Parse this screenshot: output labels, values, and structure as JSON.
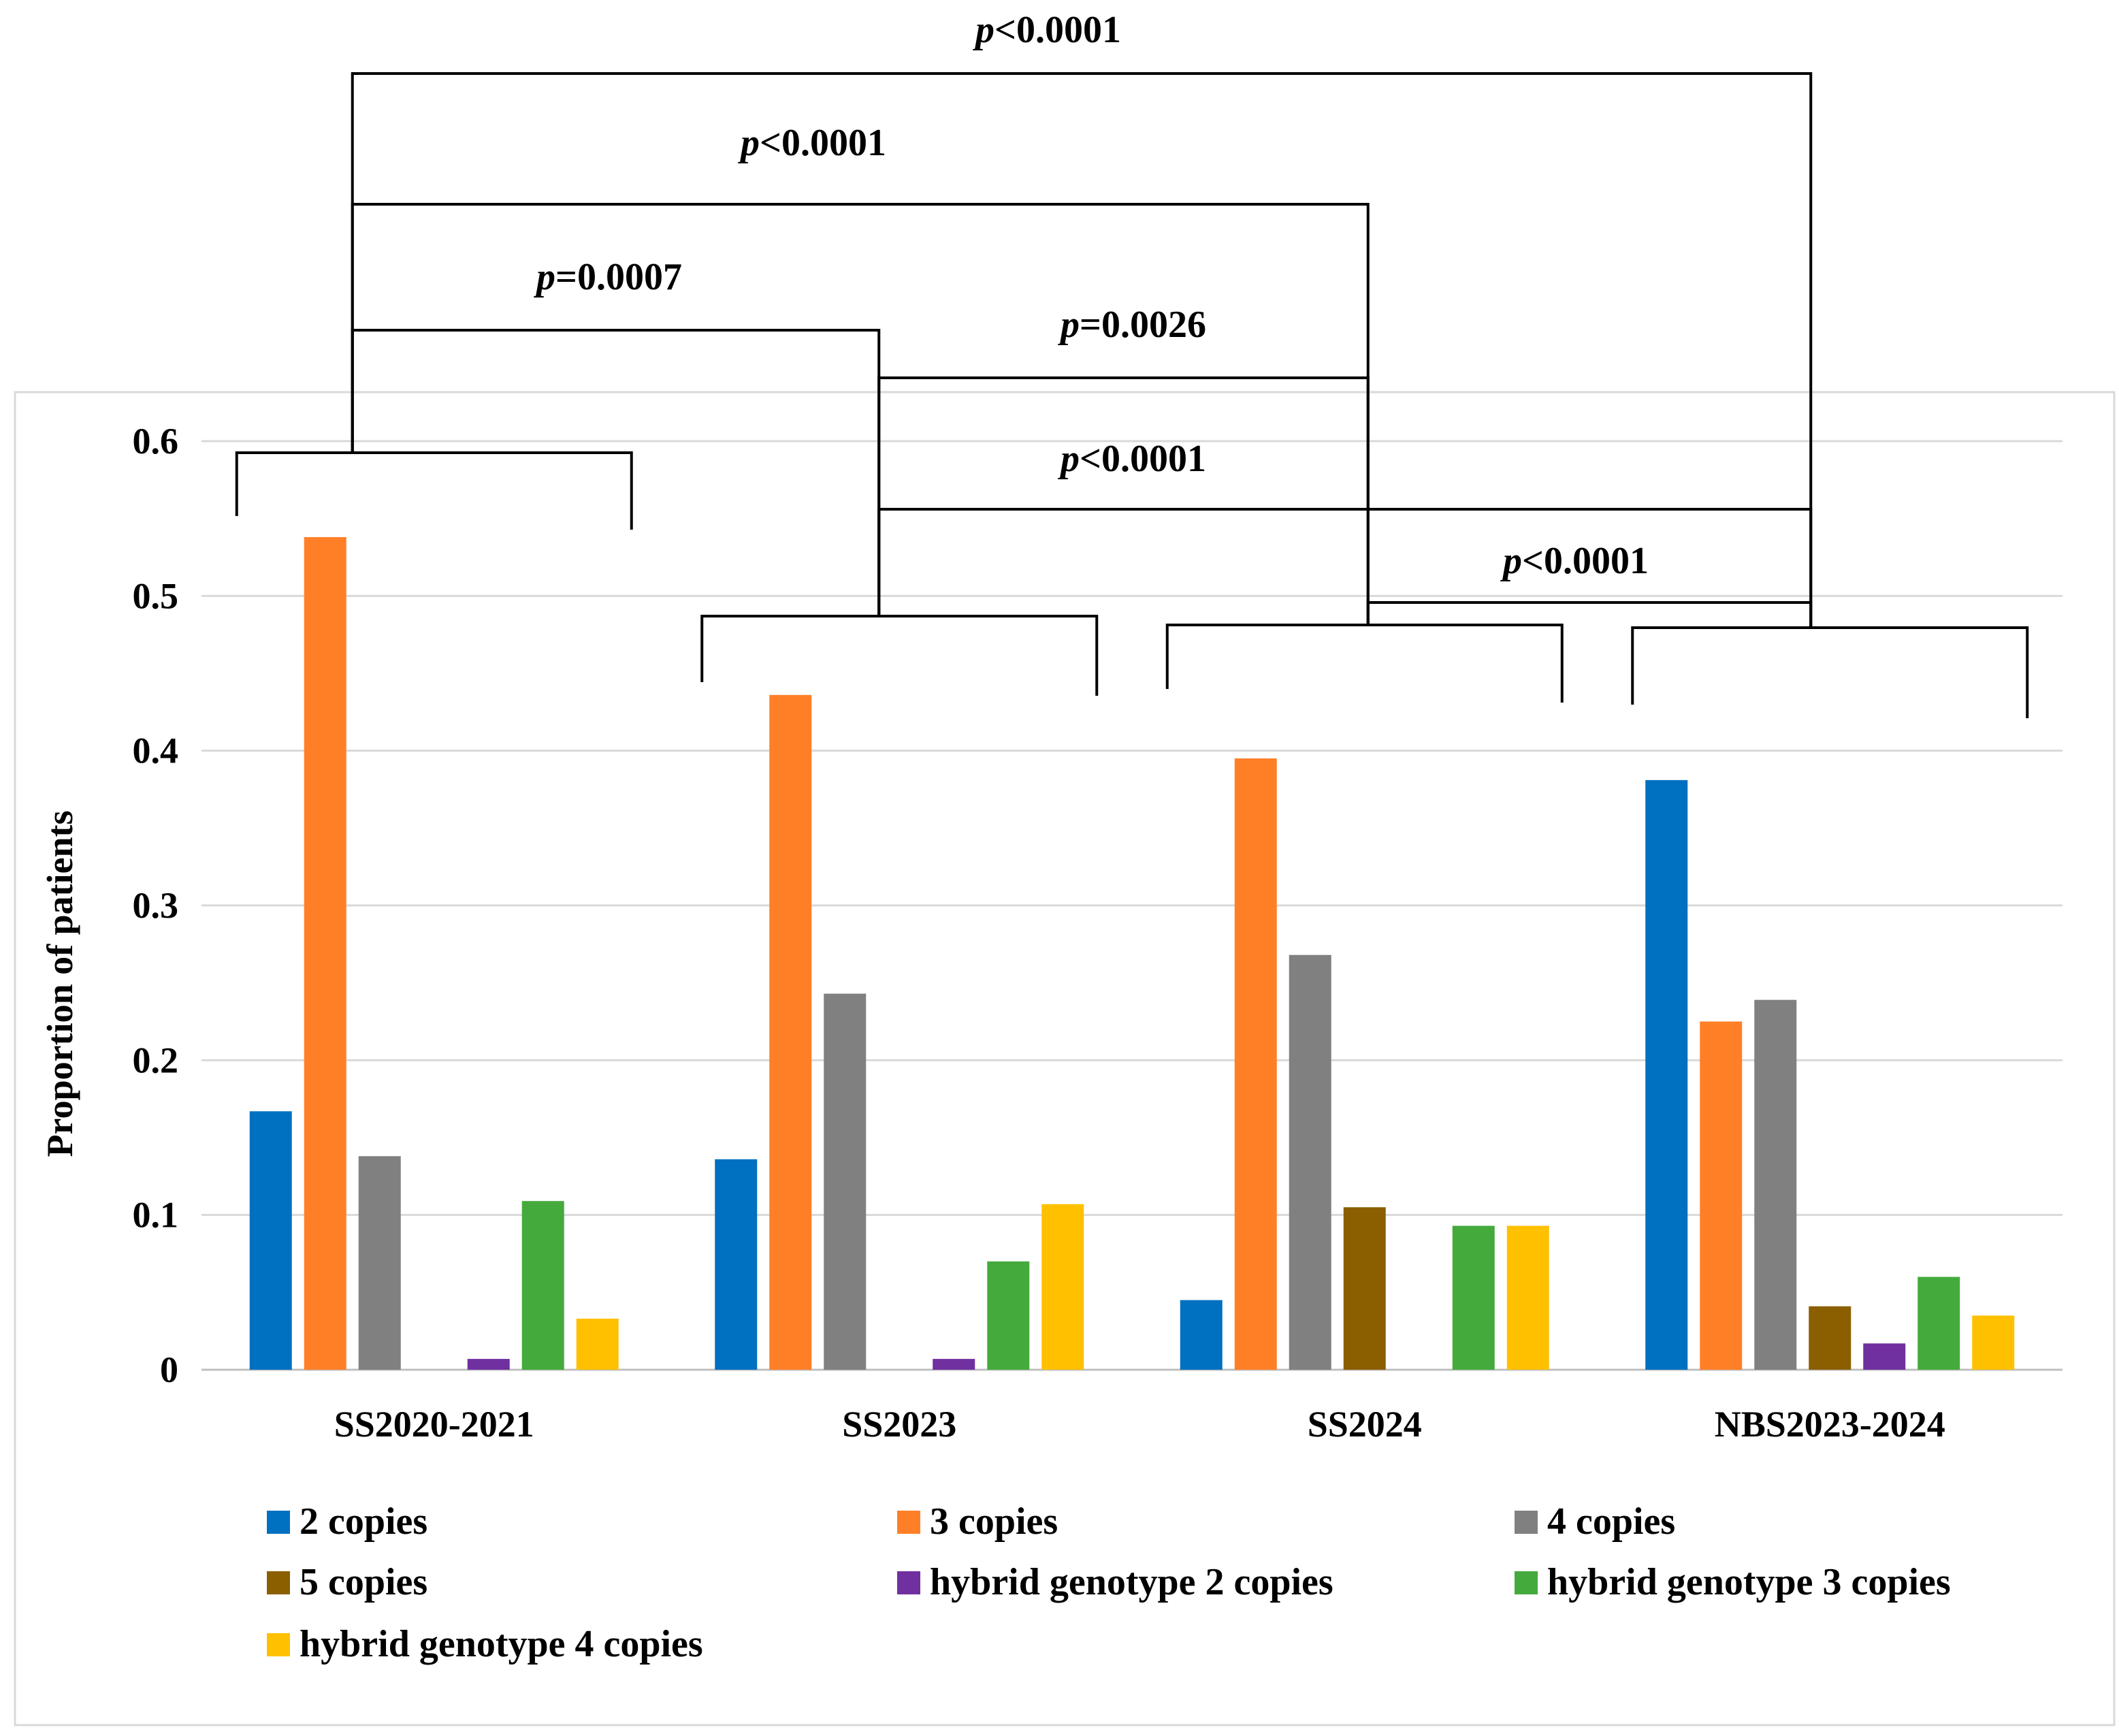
{
  "chart_data": {
    "type": "bar",
    "ylabel": "Proportion of patients",
    "ylim": [
      0,
      0.6
    ],
    "yticks": [
      "0",
      "0.1",
      "0.2",
      "0.3",
      "0.4",
      "0.5",
      "0.6"
    ],
    "categories": [
      "SS2020-2021",
      "SS2023",
      "SS2024",
      "NBS2023-2024"
    ],
    "grid": true,
    "legend_position": "bottom",
    "series": [
      {
        "name": "2 copies",
        "color": "#0070C0",
        "values": [
          0.167,
          0.136,
          0.045,
          0.381
        ]
      },
      {
        "name": "3 copies",
        "color": "#FF7F27",
        "values": [
          0.538,
          0.436,
          0.395,
          0.225
        ]
      },
      {
        "name": "4 copies",
        "color": "#808080",
        "values": [
          0.138,
          0.243,
          0.268,
          0.239
        ]
      },
      {
        "name": "5 copies",
        "color": "#8B5E00",
        "values": [
          0,
          0,
          0.105,
          0.041
        ]
      },
      {
        "name": "hybrid genotype 2 copies",
        "color": "#7030A0",
        "values": [
          0.007,
          0.007,
          0,
          0.017
        ]
      },
      {
        "name": "hybrid genotype 3 copies",
        "color": "#44AA3C",
        "values": [
          0.109,
          0.07,
          0.093,
          0.06
        ]
      },
      {
        "name": "hybrid genotype 4 copies",
        "color": "#FFC000",
        "values": [
          0.033,
          0.107,
          0.093,
          0.035
        ]
      }
    ],
    "comparisons": [
      {
        "from": "SS2020-2021",
        "to": "NBS2023-2024",
        "p_italic": "p",
        "p_rest": "<0.0001"
      },
      {
        "from": "SS2020-2021",
        "to": "SS2024",
        "p_italic": "p",
        "p_rest": "<0.0001"
      },
      {
        "from": "SS2020-2021",
        "to": "SS2023",
        "p_italic": "p",
        "p_rest": "=0.0007"
      },
      {
        "from": "SS2023",
        "to": "SS2024",
        "p_italic": "p",
        "p_rest": "=0.0026"
      },
      {
        "from": "SS2023",
        "to": "NBS2023-2024",
        "p_italic": "p",
        "p_rest": "<0.0001"
      },
      {
        "from": "SS2024",
        "to": "NBS2023-2024",
        "p_italic": "p",
        "p_rest": "<0.0001"
      }
    ]
  }
}
